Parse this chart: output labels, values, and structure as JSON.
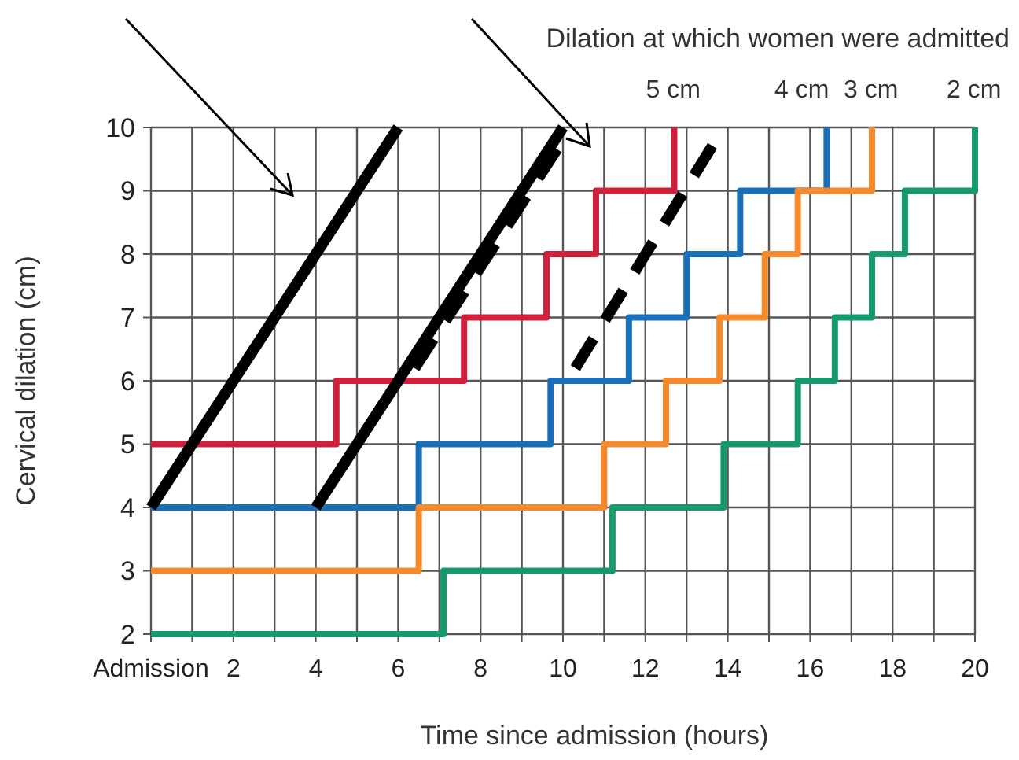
{
  "chart_data": {
    "type": "step",
    "xlabel": "Time since admission (hours)",
    "ylabel": "Cervical dilation (cm)",
    "legend_title": "Dilation at which women were admitted",
    "xlim": [
      0,
      20
    ],
    "ylim": [
      2,
      10
    ],
    "xticks": [
      {
        "value": 0,
        "label": "Admission"
      },
      {
        "value": 1,
        "label": null
      },
      2,
      {
        "value": 3,
        "label": null
      },
      4,
      {
        "value": 5,
        "label": null
      },
      6,
      {
        "value": 7,
        "label": null
      },
      8,
      {
        "value": 9,
        "label": null
      },
      10,
      {
        "value": 11,
        "label": null
      },
      12,
      {
        "value": 13,
        "label": null
      },
      14,
      {
        "value": 15,
        "label": null
      },
      16,
      {
        "value": 17,
        "label": null
      },
      18,
      {
        "value": 19,
        "label": null
      },
      20
    ],
    "yticks": [
      2,
      3,
      4,
      5,
      6,
      7,
      8,
      9,
      10
    ],
    "grid": true,
    "legend": "top right",
    "series": [
      {
        "name": "5 cm",
        "color": "#d1203b",
        "x": [
          0,
          4.5,
          7.6,
          9.6,
          10.8,
          12.7
        ],
        "values": [
          5,
          6,
          7,
          8,
          9,
          10
        ]
      },
      {
        "name": "4 cm",
        "color": "#1a6fb9",
        "x": [
          0,
          6.5,
          9.7,
          11.6,
          13,
          14.3,
          16.4
        ],
        "values": [
          4,
          5,
          6,
          7,
          8,
          9,
          10
        ]
      },
      {
        "name": "3 cm",
        "color": "#f58a2c",
        "x": [
          0,
          6.5,
          11,
          12.5,
          13.8,
          14.9,
          15.7,
          17.5
        ],
        "values": [
          3,
          4,
          5,
          6,
          7,
          8,
          9,
          10
        ]
      },
      {
        "name": "2 cm",
        "color": "#179a6b",
        "x": [
          0,
          7.1,
          11.2,
          13.9,
          15.7,
          16.6,
          17.5,
          18.3,
          20
        ],
        "values": [
          2,
          3,
          4,
          5,
          6,
          7,
          8,
          9,
          10
        ]
      },
      {
        "type": "line",
        "color": "#000000",
        "line_style": "solid",
        "x": [
          0,
          6
        ],
        "values": [
          4,
          10
        ]
      },
      {
        "type": "line",
        "color": "#000000",
        "line_style": "solid",
        "x": [
          4,
          10
        ],
        "values": [
          4,
          10
        ]
      },
      {
        "type": "line",
        "color": "#000000",
        "line_style": "dashed",
        "x": [
          6.4,
          10
        ],
        "values": [
          6.2,
          9.8
        ]
      },
      {
        "type": "line",
        "color": "#000000",
        "line_style": "dashed",
        "x": [
          10.3,
          13.9
        ],
        "values": [
          6.2,
          10
        ]
      }
    ]
  }
}
